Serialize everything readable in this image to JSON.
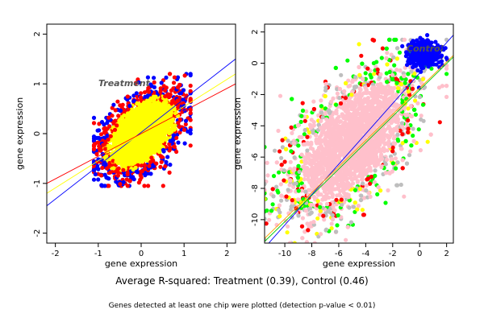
{
  "chart_data": [
    {
      "type": "scatter",
      "panel": "Treatment",
      "watermark": "Treatment",
      "xlabel": "gene expression",
      "ylabel": "gene expression",
      "xlim": [
        -2.2,
        2.2
      ],
      "ylim": [
        -2.2,
        2.2
      ],
      "xticks": [
        -2,
        -1,
        0,
        1,
        2
      ],
      "yticks": [
        -2,
        -1,
        0,
        1,
        2
      ],
      "grid": false,
      "point_cloud": {
        "center": [
          0.0,
          0.0
        ],
        "x_range": [
          -1.1,
          1.15
        ],
        "y_range": [
          -1.05,
          1.2
        ],
        "major_axis_angle_deg": 38,
        "spread": [
          0.95,
          0.55
        ]
      },
      "series": [
        {
          "color": "#0000ff",
          "role": "scatter points"
        },
        {
          "color": "#ff0000",
          "role": "scatter points"
        },
        {
          "color": "#ffff00",
          "role": "scatter points"
        }
      ],
      "lines": [
        {
          "color": "#0000ff",
          "from": [
            -2.2,
            -1.45
          ],
          "to": [
            2.2,
            1.5
          ]
        },
        {
          "color": "#ffff00",
          "from": [
            -2.2,
            -1.2
          ],
          "to": [
            2.2,
            1.2
          ]
        },
        {
          "color": "#ff0000",
          "from": [
            -2.2,
            -1.0
          ],
          "to": [
            2.2,
            1.0
          ]
        }
      ]
    },
    {
      "type": "scatter",
      "panel": "Control",
      "watermark": "Control",
      "xlabel": "gene expression",
      "ylabel": "gene expression",
      "xlim": [
        -11.5,
        2.5
      ],
      "ylim": [
        -11.5,
        2.5
      ],
      "xticks": [
        -10,
        -8,
        -6,
        -4,
        -2,
        0,
        2
      ],
      "yticks": [
        -10,
        -8,
        -6,
        -4,
        -2,
        0,
        2
      ],
      "grid": false,
      "point_cloud": {
        "center": [
          -5.0,
          -5.0
        ],
        "x_range": [
          -11.5,
          2.0
        ],
        "y_range": [
          -11.5,
          1.5
        ],
        "major_axis_angle_deg": 45,
        "spread": [
          5.5,
          2.8
        ],
        "dense_cluster": {
          "center": [
            0.3,
            0.6
          ],
          "color": "#0000ff"
        }
      },
      "series": [
        {
          "color": "#ffc0cb",
          "role": "scatter points"
        },
        {
          "color": "#00ff00",
          "role": "scatter points"
        },
        {
          "color": "#ff0000",
          "role": "scatter points"
        },
        {
          "color": "#ffff00",
          "role": "scatter points"
        },
        {
          "color": "#bebebe",
          "role": "scatter points"
        },
        {
          "color": "#0000ff",
          "role": "scatter points"
        }
      ],
      "lines": [
        {
          "color": "#0000ff",
          "from": [
            -11.5,
            -11.8
          ],
          "to": [
            2.5,
            1.8
          ]
        },
        {
          "color": "#ffa500",
          "from": [
            -11.5,
            -11.2
          ],
          "to": [
            2.5,
            0.5
          ]
        },
        {
          "color": "#00cc00",
          "from": [
            -11.5,
            -11.4
          ],
          "to": [
            2.5,
            0.4
          ]
        }
      ]
    }
  ],
  "captions": {
    "main": "Average R-squared: Treatment (0.39), Control (0.46)",
    "sub": "Genes detected at least one chip were plotted (detection p-value < 0.01)"
  }
}
